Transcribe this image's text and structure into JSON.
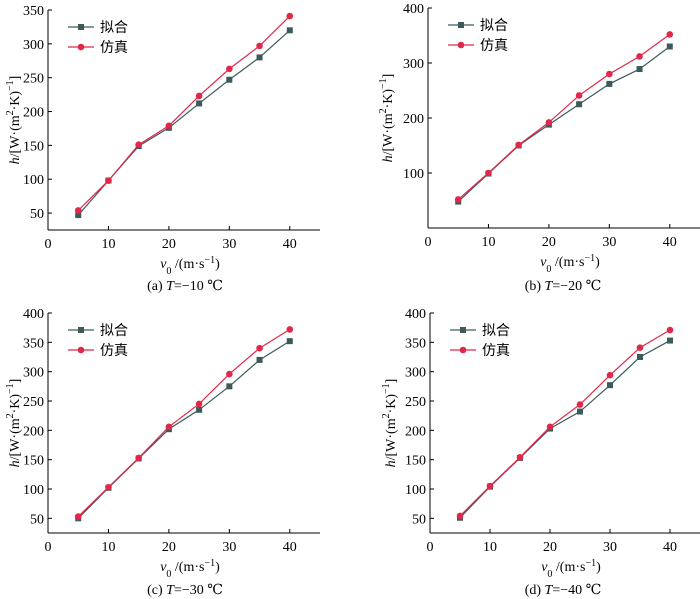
{
  "chart_data": [
    {
      "type": "line",
      "caption": "(a)  T=−10 ℃",
      "x": [
        5,
        10,
        15,
        20,
        25,
        30,
        35,
        40
      ],
      "xlim": [
        0,
        45
      ],
      "ylim": [
        25,
        350
      ],
      "xticks": [
        0,
        10,
        20,
        30,
        40
      ],
      "yticks": [
        50,
        100,
        150,
        200,
        250,
        300,
        350
      ],
      "xlabel": "v0 /(m·s−1)",
      "ylabel": "h/[W·(m2·K)−1]",
      "legend_position": "top-left",
      "series": [
        {
          "name": "拟合",
          "marker": "square",
          "color": "#3d5a5a",
          "values": [
            47,
            98,
            149,
            176,
            212,
            247,
            280,
            320
          ]
        },
        {
          "name": "仿真",
          "marker": "circle",
          "color": "#e0284a",
          "values": [
            54,
            98,
            151,
            179,
            223,
            263,
            297,
            341
          ]
        }
      ]
    },
    {
      "type": "line",
      "caption": "(b)  T=−20 ℃",
      "x": [
        5,
        10,
        15,
        20,
        25,
        30,
        35,
        40
      ],
      "xlim": [
        0,
        45
      ],
      "ylim": [
        0,
        400
      ],
      "xticks": [
        0,
        10,
        20,
        30,
        40
      ],
      "yticks": [
        100,
        200,
        300,
        400
      ],
      "xlabel": "v0 /(m·s−1)",
      "ylabel": "h/[W·(m2·K)−1]",
      "legend_position": "top-left",
      "series": [
        {
          "name": "拟合",
          "marker": "square",
          "color": "#3d5a5a",
          "values": [
            48,
            99,
            150,
            188,
            225,
            262,
            289,
            330
          ]
        },
        {
          "name": "仿真",
          "marker": "circle",
          "color": "#e0284a",
          "values": [
            52,
            100,
            151,
            192,
            241,
            280,
            312,
            352
          ]
        }
      ]
    },
    {
      "type": "line",
      "caption": "(c)  T=−30 ℃",
      "x": [
        5,
        10,
        15,
        20,
        25,
        30,
        35,
        40
      ],
      "xlim": [
        0,
        45
      ],
      "ylim": [
        25,
        400
      ],
      "xticks": [
        0,
        10,
        20,
        30,
        40
      ],
      "yticks": [
        50,
        100,
        150,
        200,
        250,
        300,
        350,
        400
      ],
      "xlabel": "v0 /(m·s−1)",
      "ylabel": "h/[W·(m2·K)−1]",
      "legend_position": "top-left",
      "series": [
        {
          "name": "拟合",
          "marker": "square",
          "color": "#3d5a5a",
          "values": [
            50,
            102,
            152,
            202,
            235,
            275,
            320,
            352
          ]
        },
        {
          "name": "仿真",
          "marker": "circle",
          "color": "#e0284a",
          "values": [
            53,
            103,
            153,
            206,
            245,
            296,
            340,
            372
          ]
        }
      ]
    },
    {
      "type": "line",
      "caption": "(d)  T=−40 ℃",
      "x": [
        5,
        10,
        15,
        20,
        25,
        30,
        35,
        40
      ],
      "xlim": [
        0,
        45
      ],
      "ylim": [
        25,
        400
      ],
      "xticks": [
        0,
        10,
        20,
        30,
        40
      ],
      "yticks": [
        50,
        100,
        150,
        200,
        250,
        300,
        350,
        400
      ],
      "xlabel": "v0 /(m·s−1)",
      "ylabel": "h/[W·(m2·K)−1]",
      "legend_position": "top-left",
      "series": [
        {
          "name": "拟合",
          "marker": "square",
          "color": "#3d5a5a",
          "values": [
            51,
            104,
            153,
            203,
            232,
            277,
            325,
            353
          ]
        },
        {
          "name": "仿真",
          "marker": "circle",
          "color": "#e0284a",
          "values": [
            54,
            105,
            154,
            206,
            244,
            294,
            341,
            371
          ]
        }
      ]
    }
  ]
}
